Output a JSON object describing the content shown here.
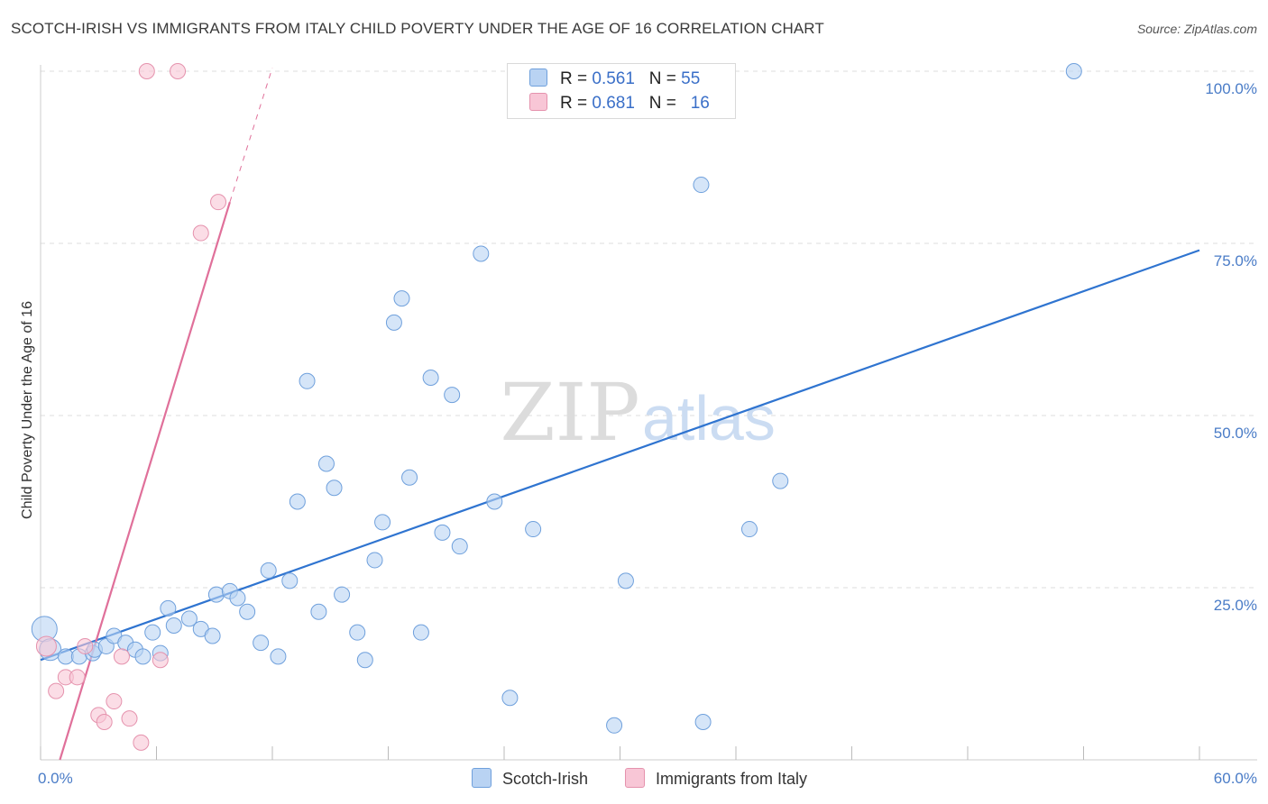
{
  "title": "SCOTCH-IRISH VS IMMIGRANTS FROM ITALY CHILD POVERTY UNDER THE AGE OF 16 CORRELATION CHART",
  "source": "Source: ZipAtlas.com",
  "watermark": {
    "zip": "ZIP",
    "atlas": "atlas"
  },
  "legend": {
    "rows": [
      {
        "r_label": "R =",
        "r_value": "0.561",
        "n_label": "N =",
        "n_value": "55"
      },
      {
        "r_label": "R =",
        "r_value": "0.681",
        "n_label": "N =",
        "n_value": "16"
      }
    ]
  },
  "bottom_legend": {
    "series1": "Scotch-Irish",
    "series2": "Immigrants from Italy"
  },
  "axis_text": {
    "ylabel": "Child Poverty Under the Age of 16",
    "x_min": "0.0%",
    "x_max": "60.0%",
    "y_ticks": [
      "100.0%",
      "75.0%",
      "50.0%",
      "25.0%"
    ]
  },
  "colors": {
    "blue_fill": "#b9d3f3",
    "blue_stroke": "#6fa0dc",
    "blue_line": "#2f74d0",
    "pink_fill": "#f8c6d6",
    "pink_stroke": "#e592ad",
    "pink_line": "#e0709a",
    "grid": "#dddddd",
    "tick_text": "#4a7cc7"
  },
  "chart_data": {
    "type": "scatter",
    "xlim": [
      0,
      60
    ],
    "ylim": [
      0,
      100
    ],
    "x_unit": "%",
    "y_unit": "%",
    "grid": true,
    "legend_position": "top-center",
    "series": [
      {
        "name": "Scotch-Irish",
        "color": "#b9d3f3",
        "points": [
          [
            0.2,
            19.0
          ],
          [
            0.5,
            16.0
          ],
          [
            1.3,
            15.0
          ],
          [
            2.0,
            15.0
          ],
          [
            2.7,
            15.5
          ],
          [
            2.8,
            16.0
          ],
          [
            3.4,
            16.5
          ],
          [
            3.8,
            18.0
          ],
          [
            4.4,
            17.0
          ],
          [
            4.9,
            16.0
          ],
          [
            5.3,
            15.0
          ],
          [
            5.8,
            18.5
          ],
          [
            6.2,
            15.5
          ],
          [
            6.6,
            22.0
          ],
          [
            6.9,
            19.5
          ],
          [
            7.7,
            20.5
          ],
          [
            8.3,
            19.0
          ],
          [
            8.9,
            18.0
          ],
          [
            9.1,
            24.0
          ],
          [
            9.8,
            24.5
          ],
          [
            10.2,
            23.5
          ],
          [
            10.7,
            21.5
          ],
          [
            11.4,
            17.0
          ],
          [
            11.8,
            27.5
          ],
          [
            12.3,
            15.0
          ],
          [
            12.9,
            26.0
          ],
          [
            13.3,
            37.5
          ],
          [
            13.8,
            55.0
          ],
          [
            14.4,
            21.5
          ],
          [
            14.8,
            43.0
          ],
          [
            15.2,
            39.5
          ],
          [
            15.6,
            24.0
          ],
          [
            16.4,
            18.5
          ],
          [
            16.8,
            14.5
          ],
          [
            17.3,
            29.0
          ],
          [
            17.7,
            34.5
          ],
          [
            18.3,
            63.5
          ],
          [
            18.7,
            67.0
          ],
          [
            19.1,
            41.0
          ],
          [
            19.7,
            18.5
          ],
          [
            20.2,
            55.5
          ],
          [
            20.8,
            33.0
          ],
          [
            21.3,
            53.0
          ],
          [
            21.7,
            31.0
          ],
          [
            22.8,
            73.5
          ],
          [
            23.5,
            37.5
          ],
          [
            24.3,
            9.0
          ],
          [
            25.5,
            33.5
          ],
          [
            29.7,
            5.0
          ],
          [
            30.3,
            26.0
          ],
          [
            34.2,
            83.5
          ],
          [
            34.3,
            5.5
          ],
          [
            36.7,
            33.5
          ],
          [
            38.3,
            40.5
          ],
          [
            53.5,
            100.0
          ]
        ]
      },
      {
        "name": "Immigrants from Italy",
        "color": "#f8c6d6",
        "points": [
          [
            0.3,
            16.5
          ],
          [
            0.8,
            10.0
          ],
          [
            1.3,
            12.0
          ],
          [
            1.9,
            12.0
          ],
          [
            2.3,
            16.5
          ],
          [
            3.0,
            6.5
          ],
          [
            3.3,
            5.5
          ],
          [
            3.8,
            8.5
          ],
          [
            4.2,
            15.0
          ],
          [
            4.6,
            6.0
          ],
          [
            5.2,
            2.5
          ],
          [
            6.2,
            14.5
          ],
          [
            8.3,
            76.5
          ],
          [
            9.2,
            81.0
          ],
          [
            5.5,
            100.0
          ],
          [
            7.1,
            100.0
          ]
        ]
      }
    ],
    "trendlines": [
      {
        "series": "Scotch-Irish",
        "from": [
          0,
          14.5
        ],
        "to": [
          60,
          74.0
        ],
        "style": "solid"
      },
      {
        "series": "Immigrants from Italy",
        "from": [
          1.0,
          0.0
        ],
        "to": [
          9.8,
          81.0
        ],
        "style": "solid"
      },
      {
        "series": "Immigrants from Italy",
        "from": [
          9.8,
          81.0
        ],
        "to": [
          12.0,
          100.5
        ],
        "style": "dashed"
      }
    ]
  }
}
